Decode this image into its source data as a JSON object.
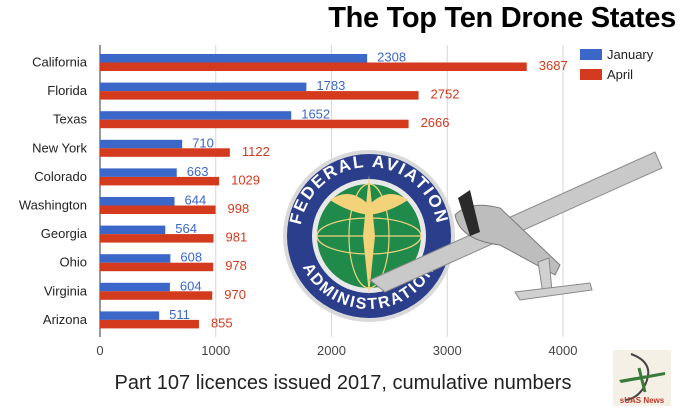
{
  "title": "The Top Ten Drone States",
  "subtitle": "Part 107 licences issued 2017, cumulative numbers",
  "logo_text": "sUAS News",
  "seal_text_top": "FEDERAL AVIATION",
  "seal_text_bottom": "ADMINISTRATION",
  "colors": {
    "january": "#3b67c8",
    "april": "#d33a1e"
  },
  "chart_data": {
    "type": "bar",
    "orientation": "horizontal",
    "title": "The Top Ten Drone States",
    "subtitle": "Part 107 licences issued 2017, cumulative numbers",
    "categories": [
      "California",
      "Florida",
      "Texas",
      "New York",
      "Colorado",
      "Washington",
      "Georgia",
      "Ohio",
      "Virginia",
      "Arizona"
    ],
    "series": [
      {
        "name": "January",
        "values": [
          2308,
          1783,
          1652,
          710,
          663,
          644,
          564,
          608,
          604,
          511
        ]
      },
      {
        "name": "April",
        "values": [
          3687,
          2752,
          2666,
          1122,
          1029,
          998,
          981,
          978,
          970,
          855
        ]
      }
    ],
    "xlim": [
      0,
      4000
    ],
    "xticks": [
      0,
      1000,
      2000,
      3000,
      4000
    ],
    "grid": true,
    "legend": "top-right",
    "data_labels": true
  }
}
